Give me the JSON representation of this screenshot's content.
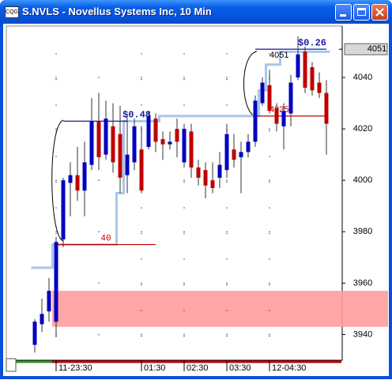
{
  "window": {
    "title": "S.NVLS - Novellus Systems Inc, 10 Min"
  },
  "chart_data": {
    "type": "candlestick",
    "categories": [
      null,
      null,
      null,
      "11-23:30",
      null,
      null,
      null,
      null,
      null,
      null,
      null,
      null,
      null,
      null,
      null,
      "01:30",
      null,
      null,
      null,
      null,
      null,
      "02:30",
      null,
      null,
      null,
      null,
      null,
      "03:30",
      null,
      null,
      null,
      null,
      null,
      "12-04:30",
      null,
      null,
      null,
      null,
      null,
      null,
      null,
      null
    ],
    "open": [
      3936,
      3944,
      3949,
      3945,
      3977,
      3999,
      4002,
      3996,
      4006,
      4023,
      4010,
      4021,
      4018,
      4002,
      4007,
      4012,
      4013,
      4024,
      4016,
      4014,
      4020,
      4007,
      4019,
      4005,
      4004,
      4000,
      4001,
      4004,
      4012,
      4009,
      4011,
      4015,
      4030,
      4037,
      4028,
      4021,
      4026,
      4040,
      4050,
      4044,
      4038,
      4034
    ],
    "high": [
      3946,
      3954,
      3962,
      3978,
      4001,
      4007,
      4013,
      4015,
      4032,
      4034,
      4031,
      4030,
      4029,
      4026,
      4024,
      4021,
      4027,
      4026,
      4019,
      4019,
      4024,
      4022,
      4022,
      4008,
      4007,
      4007,
      4011,
      4022,
      4018,
      4015,
      4018,
      4033,
      4040,
      4043,
      4030,
      4030,
      4041,
      4056,
      4052,
      4046,
      4042,
      4039
    ],
    "low": [
      3933,
      3941,
      3945,
      3939,
      3974,
      3986,
      3992,
      3986,
      4004,
      4004,
      4008,
      4003,
      3995,
      3995,
      4004,
      3995,
      4012,
      4011,
      4008,
      4012,
      4009,
      4005,
      4001,
      3998,
      3993,
      3995,
      3997,
      4001,
      4005,
      3995,
      4009,
      4013,
      4029,
      4026,
      4019,
      4012,
      4021,
      4039,
      4034,
      4033,
      4032,
      4010
    ],
    "close": [
      3945,
      3948,
      3957,
      3976,
      4000,
      4002,
      3996,
      4007,
      4023,
      4009,
      4024,
      4007,
      4001,
      4010,
      4021,
      3996,
      4025,
      4015,
      4014,
      4015,
      4015,
      4020,
      4005,
      4001,
      3998,
      3997,
      4006,
      4018,
      4008,
      4011,
      4015,
      4031,
      4038,
      4027,
      4022,
      4027,
      4038,
      4049,
      4036,
      4035,
      4034,
      4022
    ],
    "up_color": "#0000c0",
    "down_color": "#c00000",
    "trail": {
      "color": "#a8c8e8",
      "values": [
        3966,
        3966,
        3966,
        3975,
        3975,
        3975,
        3975,
        3975,
        3975,
        3975,
        3975,
        3975,
        3995,
        4023,
        4023,
        4023,
        4023,
        4023,
        4025,
        4025,
        4025,
        4025,
        4025,
        4025,
        4025,
        4025,
        4025,
        4025,
        4025,
        4025,
        4025,
        4025,
        4035,
        4045,
        4045,
        4050,
        4050,
        4050,
        4050,
        4050,
        4050,
        4050
      ]
    },
    "levels": [
      {
        "value": 4023,
        "label": "$0.48",
        "color": "#1a1aa6",
        "from": 4,
        "to": 13
      },
      {
        "value": 3975,
        "label": "40",
        "color": "#c00000",
        "from": 3,
        "to": 17
      },
      {
        "value": 4051,
        "label": "$0.26",
        "color": "#1a1aa6",
        "from": 31,
        "to": 41,
        "show_value": true
      },
      {
        "value": 4025,
        "color": "#c00000",
        "from": 31,
        "to": 41,
        "show_value": true
      }
    ],
    "zones": [
      {
        "from": 3943,
        "to": 3957,
        "color": "#ff9c9c"
      }
    ],
    "price_marker": 4051,
    "ylim": [
      3930,
      4060
    ],
    "yticks": [
      3940,
      3960,
      3980,
      4000,
      4020,
      4040
    ],
    "grid": "dotted"
  }
}
